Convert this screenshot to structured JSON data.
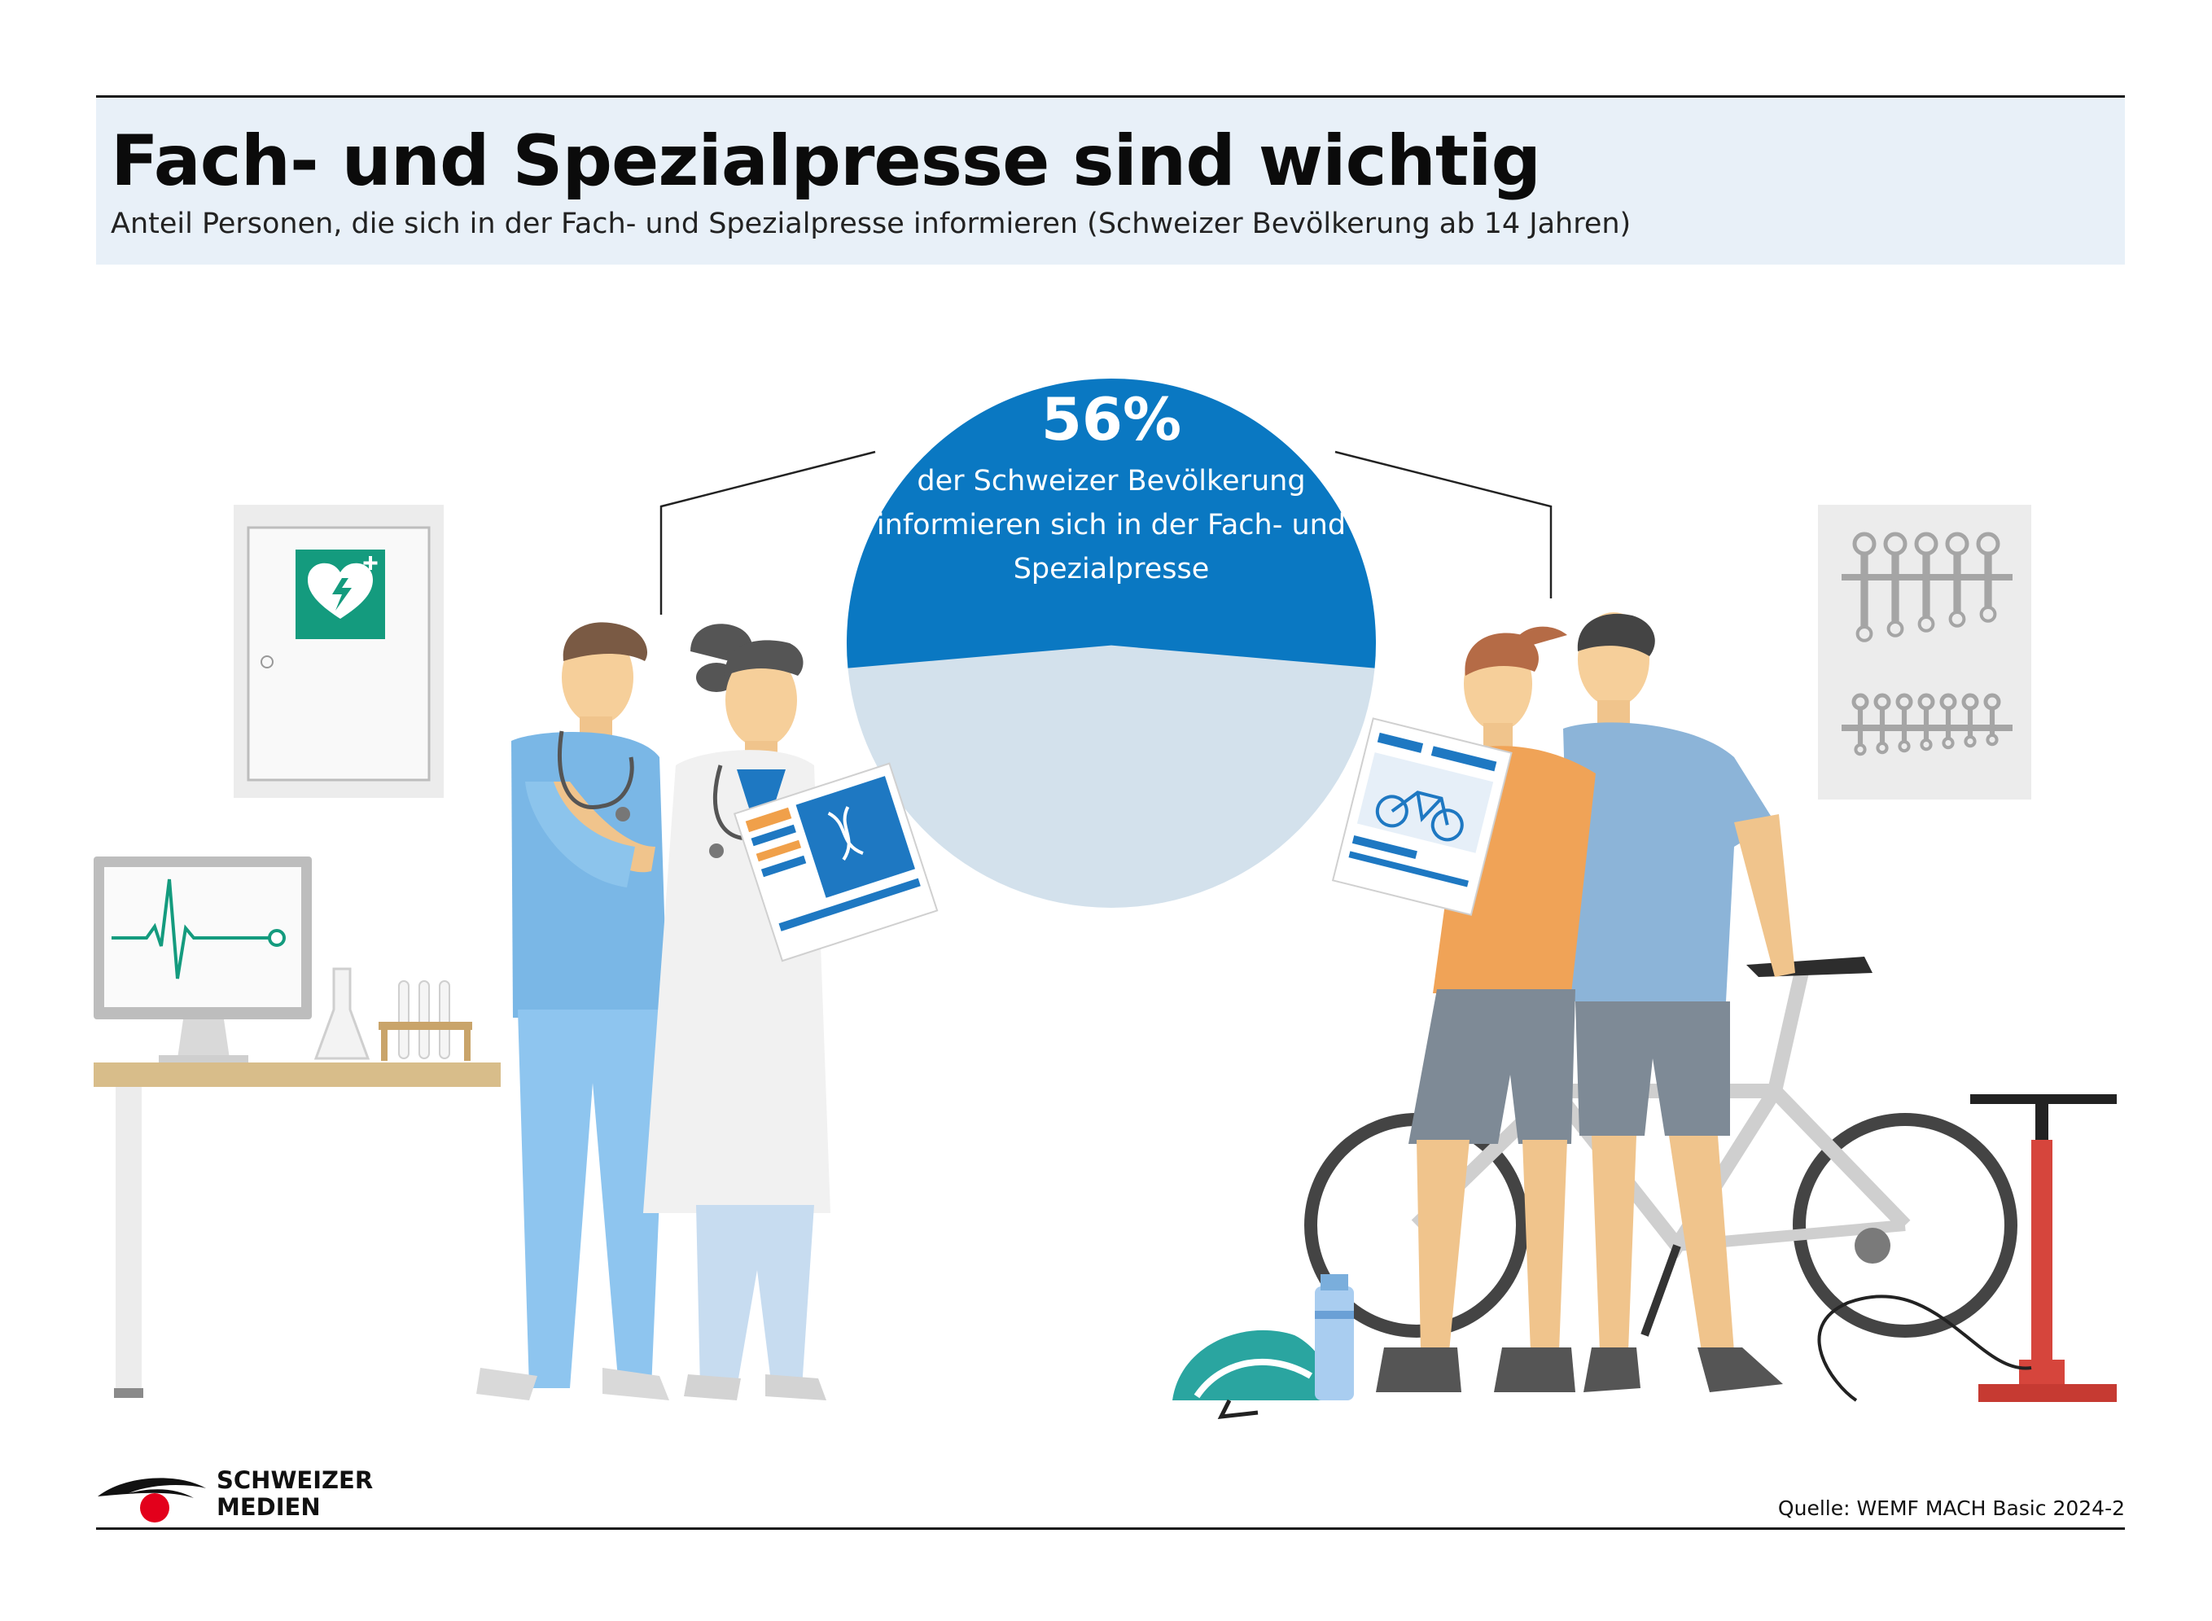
{
  "header": {
    "title": "Fach- und Spezialpresse sind wichtig",
    "subtitle": "Anteil Personen, die sich in der Fach- und Spezialpresse informieren (Schweizer Bevölkerung ab 14 Jahren)"
  },
  "chart_data": {
    "type": "pie",
    "title": "",
    "slices": [
      {
        "label": "informieren sich in der Fach- und Spezialpresse",
        "value": 56,
        "color": "#0a78c2"
      },
      {
        "label": "",
        "value": 44,
        "color": "#d3e1ec"
      }
    ],
    "value_label": "56%",
    "caption": "der Schweizer Bevölkerung informieren sich in der Fach- und Spezialpresse"
  },
  "footer": {
    "brand_line1": "SCHWEIZER",
    "brand_line2": "MEDIEN",
    "source": "Quelle: WEMF MACH Basic 2024-2"
  },
  "colors": {
    "accent_blue": "#0a78c2",
    "pale_blue": "#d3e1ec",
    "header_bg": "#e8f0f8",
    "logo_red": "#e3001b"
  },
  "icons": [
    "defibrillator-icon",
    "heart-monitor-icon",
    "bicycle-icon",
    "wrench-set-icon"
  ]
}
